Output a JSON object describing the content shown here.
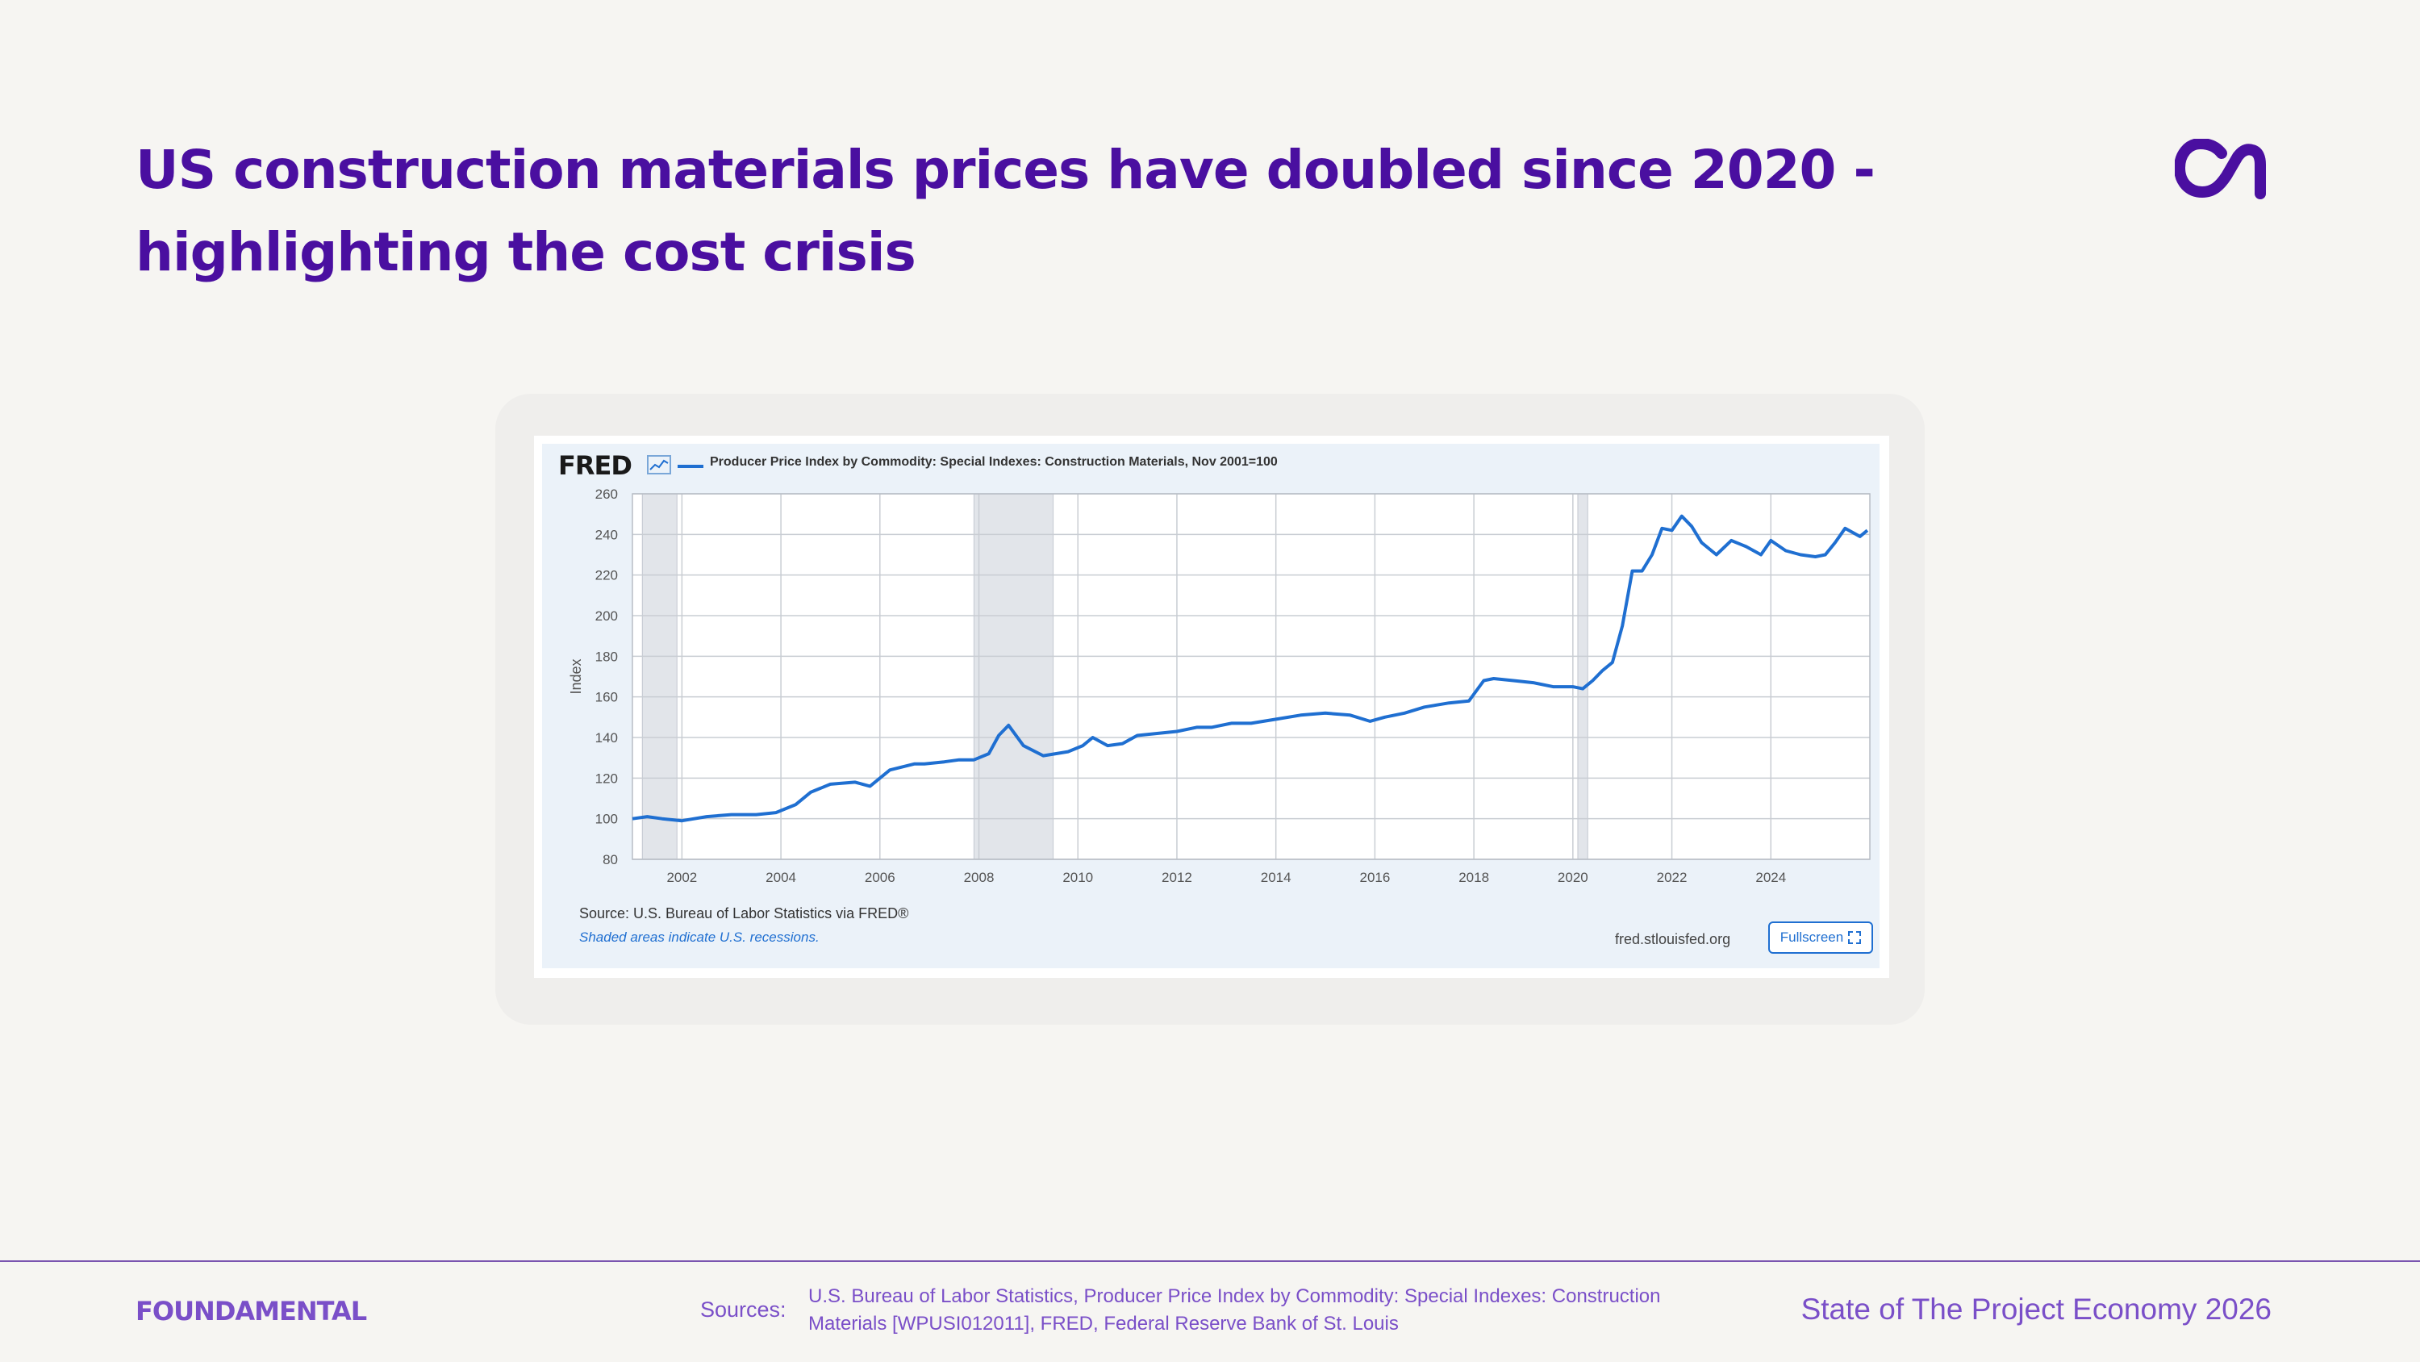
{
  "slide": {
    "title_line1": "US construction materials prices have doubled since 2020 -",
    "title_line2": "highlighting the cost crisis"
  },
  "brand_logo": {
    "icon": "au-logo-icon",
    "color": "#4a0fa0"
  },
  "fred": {
    "logo": "FRED",
    "graph_icon": "line-graph-icon",
    "legend": "Producer Price Index by Commodity: Special Indexes: Construction Materials, Nov 2001=100",
    "source": "Source: U.S. Bureau of Labor Statistics via FRED®",
    "recession_note": "Shaded areas indicate U.S. recessions.",
    "url": "fred.stlouisfed.org",
    "fullscreen": "Fullscreen",
    "fullscreen_icon": "expand-icon"
  },
  "chart_data": {
    "type": "line",
    "title": "Producer Price Index by Commodity: Special Indexes: Construction Materials, Nov 2001=100",
    "xlabel": "",
    "ylabel": "Index",
    "xlim": [
      2001.0,
      2026.0
    ],
    "ylim": [
      80,
      260
    ],
    "y_ticks": [
      80,
      100,
      120,
      140,
      160,
      180,
      200,
      220,
      240,
      260
    ],
    "x_ticks": [
      2002,
      2004,
      2006,
      2008,
      2010,
      2012,
      2014,
      2016,
      2018,
      2020,
      2022,
      2024
    ],
    "grid": true,
    "color": "#1f6fd1",
    "recessions": [
      [
        2001.2,
        2001.9
      ],
      [
        2007.9,
        2009.5
      ],
      [
        2020.1,
        2020.3
      ]
    ],
    "series": [
      {
        "name": "",
        "x": [
          2001.0,
          2001.3,
          2001.6,
          2002.0,
          2002.5,
          2003.0,
          2003.5,
          2003.9,
          2004.3,
          2004.6,
          2005.0,
          2005.5,
          2005.8,
          2006.2,
          2006.7,
          2006.9,
          2007.3,
          2007.6,
          2007.9,
          2008.2,
          2008.4,
          2008.6,
          2008.9,
          2009.3,
          2009.8,
          2010.1,
          2010.3,
          2010.6,
          2010.9,
          2011.2,
          2011.6,
          2012.0,
          2012.4,
          2012.7,
          2013.1,
          2013.5,
          2014.0,
          2014.5,
          2015.0,
          2015.5,
          2015.9,
          2016.2,
          2016.6,
          2017.0,
          2017.5,
          2017.9,
          2018.2,
          2018.4,
          2018.8,
          2019.2,
          2019.6,
          2020.0,
          2020.2,
          2020.4,
          2020.6,
          2020.8,
          2021.0,
          2021.2,
          2021.4,
          2021.6,
          2021.8,
          2022.0,
          2022.2,
          2022.4,
          2022.6,
          2022.9,
          2023.2,
          2023.5,
          2023.8,
          2024.0,
          2024.3,
          2024.6,
          2024.9,
          2025.1,
          2025.3,
          2025.5,
          2025.8,
          2025.95
        ],
        "values": [
          100,
          101,
          100,
          99,
          101,
          102,
          102,
          103,
          107,
          113,
          117,
          118,
          116,
          124,
          127,
          127,
          128,
          129,
          129,
          132,
          141,
          146,
          136,
          131,
          133,
          136,
          140,
          136,
          137,
          141,
          142,
          143,
          145,
          145,
          147,
          147,
          149,
          151,
          152,
          151,
          148,
          150,
          152,
          155,
          157,
          158,
          168,
          169,
          168,
          167,
          165,
          165,
          164,
          168,
          173,
          177,
          195,
          222,
          222,
          230,
          243,
          242,
          249,
          244,
          236,
          230,
          237,
          234,
          230,
          237,
          232,
          230,
          229,
          230,
          236,
          243,
          239,
          242
        ]
      }
    ]
  },
  "footer": {
    "brand": "FOUNDAMENTAL",
    "sources_label": "Sources:",
    "sources_line1": "U.S. Bureau of Labor Statistics, Producer Price Index by Commodity: Special Indexes: Construction",
    "sources_line2": "Materials [WPUSI012011], FRED, Federal Reserve Bank of St. Louis",
    "report": "State of The Project Economy 2026"
  }
}
